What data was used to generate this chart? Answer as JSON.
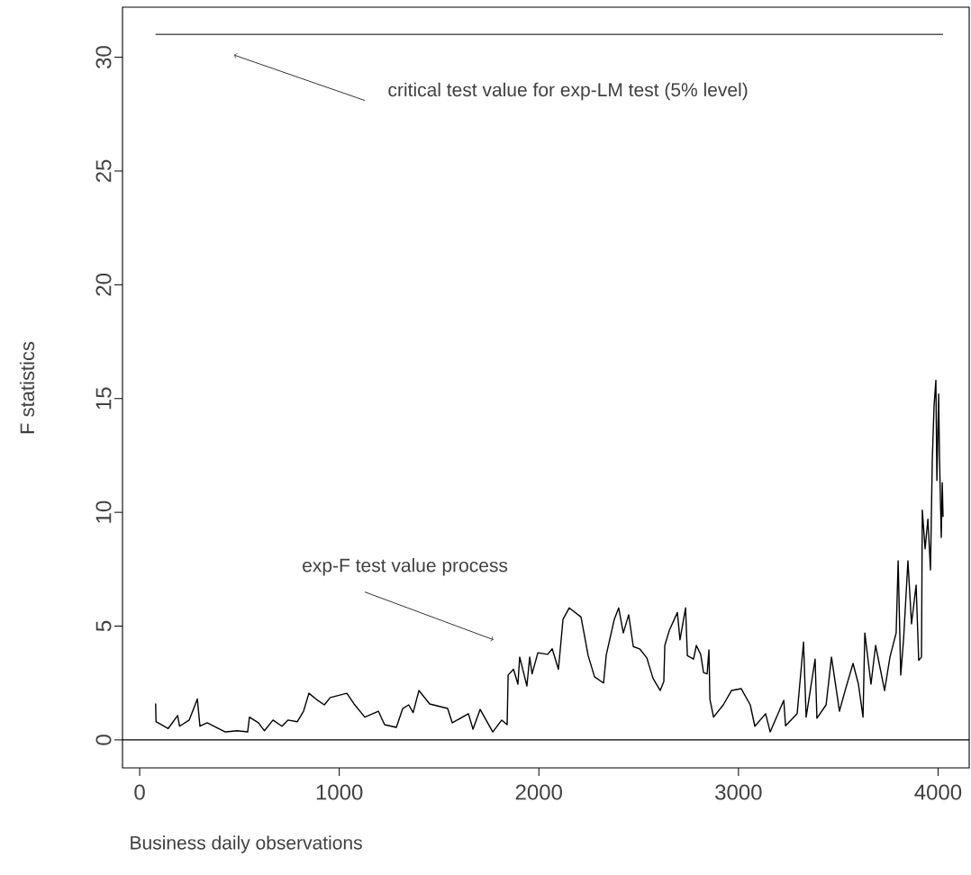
{
  "chart_data": {
    "type": "line",
    "xlabel": "Business daily observations",
    "ylabel": "F statistics",
    "series": [
      {
        "color": "#000000",
        "x": [
          80,
          82,
          143,
          190,
          200,
          248,
          289,
          302,
          338,
          429,
          487,
          541,
          550,
          595,
          625,
          668,
          713,
          743,
          790,
          821,
          848,
          893,
          925,
          955,
          1038,
          1074,
          1128,
          1196,
          1227,
          1286,
          1318,
          1348,
          1370,
          1399,
          1453,
          1543,
          1566,
          1647,
          1670,
          1706,
          1769,
          1814,
          1841,
          1846,
          1873,
          1895,
          1904,
          1940,
          1954,
          1966,
          1995,
          2044,
          2067,
          2098,
          2121,
          2152,
          2211,
          2225,
          2247,
          2279,
          2324,
          2338,
          2378,
          2400,
          2423,
          2450,
          2473,
          2505,
          2541,
          2572,
          2608,
          2626,
          2631,
          2653,
          2694,
          2707,
          2735,
          2744,
          2775,
          2789,
          2811,
          2825,
          2843,
          2852,
          2857,
          2875,
          2924,
          2965,
          3014,
          3059,
          3082,
          3136,
          3159,
          3227,
          3236,
          3294,
          3326,
          3339,
          3384,
          3393,
          3439,
          3466,
          3506,
          3533,
          3574,
          3601,
          3624,
          3633,
          3664,
          3687,
          3732,
          3759,
          3790,
          3800,
          3813,
          3827,
          3849,
          3867,
          3890,
          3903,
          3917,
          3921,
          3935,
          3949,
          3962,
          3971,
          3980,
          3989,
          3994,
          4003,
          4007,
          4016,
          4021,
          4025
        ],
        "values": [
          1.6,
          0.8,
          0.5,
          1.07,
          0.6,
          0.87,
          1.8,
          0.6,
          0.75,
          0.35,
          0.4,
          0.35,
          1.0,
          0.75,
          0.4,
          0.87,
          0.6,
          0.87,
          0.8,
          1.26,
          2.05,
          1.73,
          1.54,
          1.86,
          2.05,
          1.58,
          1.0,
          1.26,
          0.67,
          0.55,
          1.38,
          1.54,
          1.2,
          2.17,
          1.58,
          1.38,
          0.75,
          1.15,
          0.47,
          1.34,
          0.35,
          0.87,
          0.67,
          2.85,
          3.1,
          2.45,
          3.64,
          2.37,
          3.64,
          2.9,
          3.83,
          3.76,
          4.0,
          3.1,
          5.3,
          5.8,
          5.4,
          4.75,
          3.7,
          2.77,
          2.5,
          3.75,
          5.3,
          5.8,
          4.7,
          5.5,
          4.1,
          4.0,
          3.6,
          2.7,
          2.17,
          2.57,
          4.15,
          4.8,
          5.6,
          4.4,
          5.8,
          3.7,
          3.55,
          4.15,
          3.75,
          2.96,
          2.9,
          3.95,
          1.78,
          1.0,
          1.54,
          2.17,
          2.25,
          1.54,
          0.6,
          1.15,
          0.35,
          1.74,
          0.62,
          1.15,
          4.3,
          1.0,
          3.55,
          0.95,
          1.54,
          3.64,
          1.26,
          2.13,
          3.36,
          2.45,
          1.0,
          4.7,
          2.45,
          4.15,
          2.17,
          3.64,
          4.7,
          7.87,
          2.85,
          4.4,
          7.87,
          5.1,
          6.8,
          3.5,
          3.64,
          10.1,
          8.4,
          9.7,
          7.47,
          12.3,
          14.7,
          15.8,
          11.4,
          15.2,
          12.5,
          8.9,
          11.3,
          9.8
        ]
      },
      {
        "color": "#555555",
        "x": [
          80,
          4025
        ],
        "values": [
          31,
          31
        ]
      }
    ],
    "xlim": [
      -86,
      4156
    ],
    "ylim": [
      -1.23,
      32.2
    ],
    "xticks": [
      0,
      1000,
      2000,
      3000,
      4000
    ],
    "yticks": [
      0,
      5,
      10,
      15,
      20,
      25,
      30
    ],
    "ref_lines": [
      {
        "axis": "y",
        "value": 0,
        "color": "#000000"
      }
    ],
    "annotations": [
      {
        "text": "critical test value for exp-LM test (5% level)",
        "x": 472,
        "y": 30.1
      },
      {
        "text": "exp-F test value process",
        "x": 1773,
        "y": 4.4
      }
    ]
  }
}
